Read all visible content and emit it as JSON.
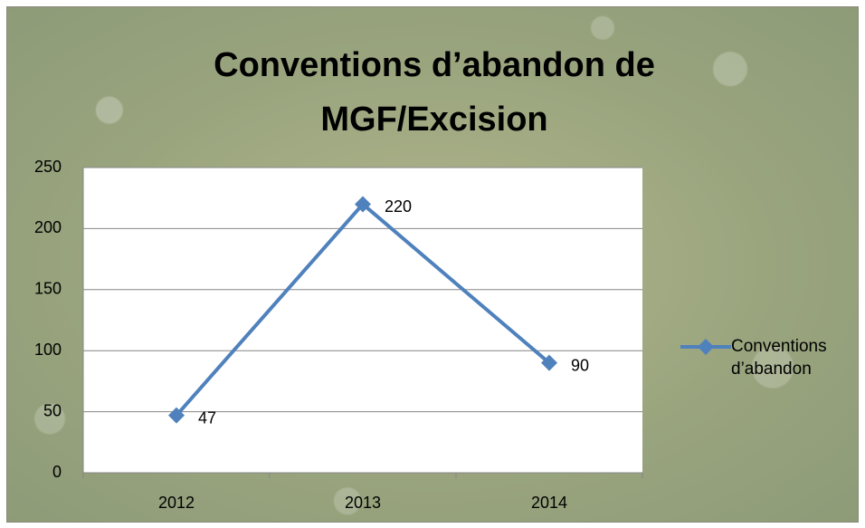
{
  "chart_data": {
    "type": "line",
    "title": "Conventions d’abandon de MGF/Excision",
    "categories": [
      "2012",
      "2013",
      "2014"
    ],
    "series": [
      {
        "name": "Conventions d’abandon",
        "color": "#4f81bd",
        "values": [
          47,
          220,
          90
        ]
      }
    ],
    "ylim": [
      0,
      250
    ],
    "yticks": [
      0,
      50,
      100,
      150,
      200,
      250
    ],
    "grid": true,
    "legend": "right",
    "data_labels": true
  }
}
